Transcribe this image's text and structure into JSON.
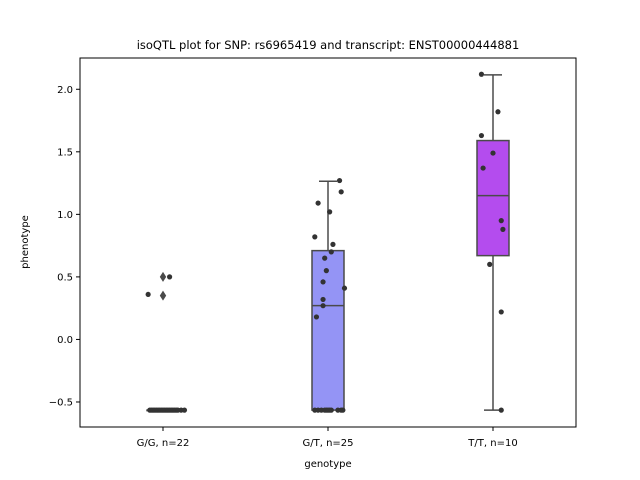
{
  "chart_data": {
    "type": "box",
    "title": "isoQTL plot for SNP: rs6965419 and transcript: ENST00000444881",
    "xlabel": "genotype",
    "ylabel": "phenotype",
    "ylim": [
      -0.7,
      2.25
    ],
    "yticks": [
      -0.5,
      0.0,
      0.5,
      1.0,
      1.5,
      2.0
    ],
    "ytick_labels": [
      "−0.5",
      "0.0",
      "0.5",
      "1.0",
      "1.5",
      "2.0"
    ],
    "grid": false,
    "categories": [
      "G/G, n=22",
      "G/T, n=25",
      "T/T, n=10"
    ],
    "groups": [
      {
        "category": "G/G, n=22",
        "color": "#7e7ef5",
        "box": {
          "q1": -0.565,
          "median": -0.565,
          "q3": -0.565,
          "whisker_low": -0.565,
          "whisker_high": -0.565
        },
        "fliers": [
          0.35,
          0.5
        ],
        "points": [
          {
            "x": -0.09,
            "y": 0.36
          },
          {
            "x": 0.04,
            "y": 0.5
          },
          {
            "x": -0.08,
            "y": -0.565
          },
          {
            "x": -0.07,
            "y": -0.565
          },
          {
            "x": -0.06,
            "y": -0.565
          },
          {
            "x": -0.05,
            "y": -0.565
          },
          {
            "x": -0.04,
            "y": -0.565
          },
          {
            "x": -0.03,
            "y": -0.565
          },
          {
            "x": -0.02,
            "y": -0.565
          },
          {
            "x": -0.01,
            "y": -0.565
          },
          {
            "x": 0.0,
            "y": -0.565
          },
          {
            "x": 0.01,
            "y": -0.565
          },
          {
            "x": 0.02,
            "y": -0.565
          },
          {
            "x": 0.03,
            "y": -0.565
          },
          {
            "x": 0.04,
            "y": -0.565
          },
          {
            "x": 0.05,
            "y": -0.565
          },
          {
            "x": 0.06,
            "y": -0.565
          },
          {
            "x": 0.07,
            "y": -0.565
          },
          {
            "x": 0.08,
            "y": -0.565
          },
          {
            "x": 0.09,
            "y": -0.565
          },
          {
            "x": 0.11,
            "y": -0.565
          },
          {
            "x": 0.13,
            "y": -0.565
          }
        ]
      },
      {
        "category": "G/T, n=25",
        "color": "#9494f5",
        "box": {
          "q1": -0.565,
          "median": 0.27,
          "q3": 0.71,
          "whisker_low": -0.565,
          "whisker_high": 1.265
        },
        "fliers": [],
        "points": [
          {
            "x": 0.07,
            "y": 1.27
          },
          {
            "x": 0.08,
            "y": 1.18
          },
          {
            "x": -0.06,
            "y": 1.09
          },
          {
            "x": 0.01,
            "y": 1.02
          },
          {
            "x": -0.08,
            "y": 0.82
          },
          {
            "x": 0.03,
            "y": 0.76
          },
          {
            "x": 0.02,
            "y": 0.7
          },
          {
            "x": -0.02,
            "y": 0.65
          },
          {
            "x": -0.01,
            "y": 0.55
          },
          {
            "x": -0.03,
            "y": 0.46
          },
          {
            "x": 0.1,
            "y": 0.41
          },
          {
            "x": -0.03,
            "y": 0.32
          },
          {
            "x": -0.03,
            "y": 0.27
          },
          {
            "x": -0.07,
            "y": 0.18
          },
          {
            "x": -0.08,
            "y": -0.565
          },
          {
            "x": -0.06,
            "y": -0.565
          },
          {
            "x": -0.04,
            "y": -0.565
          },
          {
            "x": -0.02,
            "y": -0.565
          },
          {
            "x": -0.01,
            "y": -0.565
          },
          {
            "x": 0.0,
            "y": -0.565
          },
          {
            "x": 0.01,
            "y": -0.565
          },
          {
            "x": 0.02,
            "y": -0.565
          },
          {
            "x": 0.06,
            "y": -0.565
          },
          {
            "x": 0.08,
            "y": -0.565
          },
          {
            "x": 0.09,
            "y": -0.565
          }
        ]
      },
      {
        "category": "T/T, n=10",
        "color": "#b44cee",
        "box": {
          "q1": 0.67,
          "median": 1.15,
          "q3": 1.59,
          "whisker_low": -0.565,
          "whisker_high": 2.115
        },
        "fliers": [],
        "points": [
          {
            "x": -0.07,
            "y": 2.12
          },
          {
            "x": 0.03,
            "y": 1.82
          },
          {
            "x": -0.07,
            "y": 1.63
          },
          {
            "x": 0.0,
            "y": 1.49
          },
          {
            "x": -0.06,
            "y": 1.37
          },
          {
            "x": 0.05,
            "y": 0.95
          },
          {
            "x": 0.06,
            "y": 0.88
          },
          {
            "x": -0.02,
            "y": 0.6
          },
          {
            "x": 0.05,
            "y": 0.22
          },
          {
            "x": 0.05,
            "y": -0.565
          }
        ]
      }
    ]
  }
}
